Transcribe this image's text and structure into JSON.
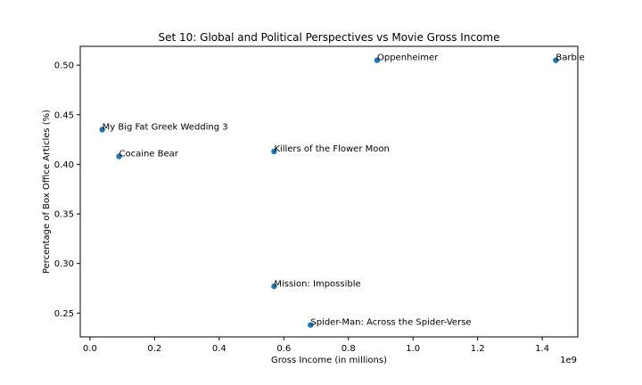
{
  "chart_data": {
    "type": "scatter",
    "title": "Set 10: Global and Political Perspectives vs Movie Gross Income",
    "xlabel": "Gross Income (in millions)",
    "ylabel": "Percentage of Box Office Articles (%)",
    "x_offset_label": "1e9",
    "xlim": [
      -0.03,
      1.51
    ],
    "ylim": [
      0.226,
      0.519
    ],
    "xticks": [
      0.0,
      0.2,
      0.4,
      0.6,
      0.8,
      1.0,
      1.2,
      1.4
    ],
    "xtick_labels": [
      "0.0",
      "0.2",
      "0.4",
      "0.6",
      "0.8",
      "1.0",
      "1.2",
      "1.4"
    ],
    "yticks": [
      0.25,
      0.3,
      0.35,
      0.4,
      0.45,
      0.5
    ],
    "ytick_labels": [
      "0.25",
      "0.30",
      "0.35",
      "0.40",
      "0.45",
      "0.50"
    ],
    "grid": false,
    "point_color": "#1f77b4",
    "points": [
      {
        "label": "Barbie",
        "x": 1.442,
        "y": 0.505
      },
      {
        "label": "Oppenheimer",
        "x": 0.889,
        "y": 0.505
      },
      {
        "label": "My Big Fat Greek Wedding 3",
        "x": 0.038,
        "y": 0.435
      },
      {
        "label": "Cocaine Bear",
        "x": 0.09,
        "y": 0.408
      },
      {
        "label": "Killers of the Flower Moon",
        "x": 0.57,
        "y": 0.413
      },
      {
        "label": "Mission: Impossible",
        "x": 0.57,
        "y": 0.277
      },
      {
        "label": "Spider-Man: Across the Spider-Verse",
        "x": 0.683,
        "y": 0.238
      }
    ]
  }
}
